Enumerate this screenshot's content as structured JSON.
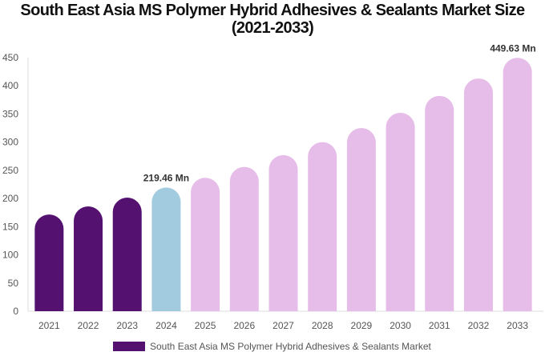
{
  "chart_data": {
    "type": "bar",
    "title": "South East Asia MS Polymer Hybrid Adhesives & Sealants Market Size (2021-2033)",
    "categories": [
      "2021",
      "2022",
      "2023",
      "2024",
      "2025",
      "2026",
      "2027",
      "2028",
      "2029",
      "2030",
      "2031",
      "2032",
      "2033"
    ],
    "series": [
      {
        "name": "South East Asia MS Polymer Hybrid Adhesives & Sealants Market",
        "values": [
          171.6,
          186,
          201.5,
          219.46,
          236.7,
          256,
          277,
          300,
          325,
          352,
          382,
          413,
          449.63
        ]
      }
    ],
    "data_labels": {
      "3": "219.46 Mn",
      "12": "449.63 Mn"
    },
    "ylim": [
      0,
      450
    ],
    "yticks": [
      0,
      50,
      100,
      150,
      200,
      250,
      300,
      350,
      400,
      450
    ],
    "grid": false,
    "legend": "bottom",
    "colors": {
      "historical": "#541170",
      "current": "#a3cbdf",
      "forecast": "#e6bde8"
    }
  }
}
